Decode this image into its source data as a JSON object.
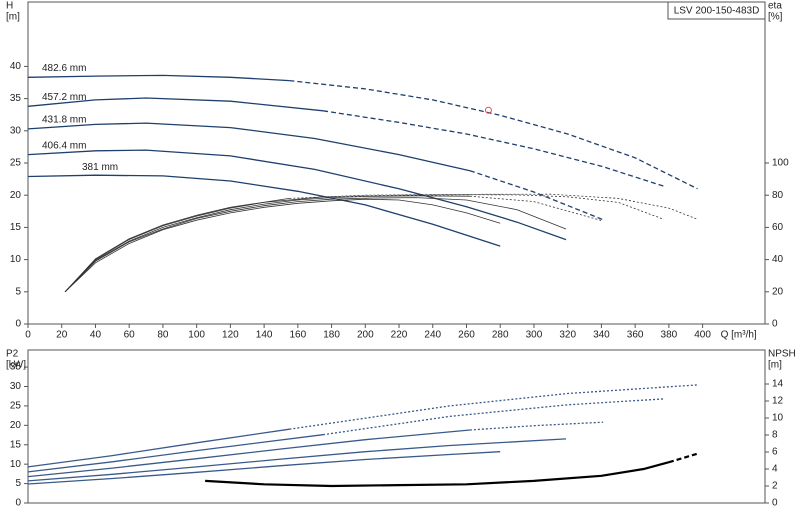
{
  "chart_data": [
    {
      "type": "line",
      "title": "LSV 200-150-483D",
      "xlabel": "Q [m³/h]",
      "ylabel": [
        "H",
        "[m]"
      ],
      "y2label": [
        "eta",
        "[%]"
      ],
      "xlim": [
        0,
        437
      ],
      "xticks": [
        0,
        20,
        40,
        60,
        80,
        100,
        120,
        140,
        160,
        180,
        200,
        220,
        240,
        260,
        280,
        300,
        320,
        340,
        360,
        380,
        400
      ],
      "ylim": [
        0,
        50
      ],
      "yticks": [
        0,
        5,
        10,
        15,
        20,
        25,
        30,
        35,
        40
      ],
      "y2lim": [
        0,
        200
      ],
      "y2ticks": [
        0,
        20,
        40,
        60,
        80,
        100
      ],
      "operating_point": {
        "x": 273,
        "y": 33.2,
        "color": "#e05050"
      },
      "series": [
        {
          "name": "482.6 mm",
          "color": "#1f3f6e",
          "style": "solid",
          "x": [
            0,
            40,
            80,
            120,
            155
          ],
          "values": [
            38.3,
            38.5,
            38.6,
            38.3,
            37.8
          ]
        },
        {
          "color": "#1f3f6e",
          "style": "dashed",
          "x": [
            155,
            200,
            240,
            280,
            320,
            360,
            397
          ],
          "values": [
            37.8,
            36.5,
            34.8,
            32.4,
            29.5,
            25.8,
            21
          ]
        },
        {
          "name": "457.2 mm",
          "color": "#1f3f6e",
          "style": "solid",
          "x": [
            0,
            40,
            70,
            120,
            175
          ],
          "values": [
            33.8,
            34.8,
            35.1,
            34.6,
            33.1
          ]
        },
        {
          "color": "#1f3f6e",
          "style": "dashed",
          "x": [
            175,
            220,
            260,
            300,
            340,
            377
          ],
          "values": [
            33.1,
            31.3,
            29.5,
            27.2,
            24.5,
            21.4
          ]
        },
        {
          "name": "431.8 mm",
          "color": "#1f3f6e",
          "style": "solid",
          "x": [
            0,
            40,
            70,
            120,
            170,
            220,
            262
          ],
          "values": [
            30.3,
            31,
            31.2,
            30.5,
            28.8,
            26.3,
            23.8
          ]
        },
        {
          "color": "#1f3f6e",
          "style": "dashed",
          "x": [
            262,
            300,
            341
          ],
          "values": [
            23.8,
            20.5,
            16.2
          ]
        },
        {
          "name": "406.4 mm",
          "color": "#1f3f6e",
          "style": "solid",
          "x": [
            0,
            40,
            70,
            120,
            170,
            220,
            260,
            290,
            319
          ],
          "values": [
            26.3,
            26.9,
            27,
            26.1,
            24,
            21,
            18.2,
            15.8,
            13.1
          ]
        },
        {
          "name": "381 mm",
          "color": "#1f3f6e",
          "style": "solid",
          "x": [
            0,
            40,
            80,
            120,
            160,
            200,
            240,
            280
          ],
          "values": [
            22.9,
            23.1,
            23,
            22.2,
            20.6,
            18.5,
            15.5,
            12.1
          ]
        },
        {
          "color": "#333333",
          "style": "solid",
          "axis": "y2",
          "x": [
            22,
            40,
            60,
            80,
            100,
            120,
            140,
            160,
            180,
            200,
            220,
            240,
            260,
            280
          ],
          "values": [
            20,
            38,
            50,
            58.5,
            64.5,
            69,
            72.5,
            75,
            76.5,
            77.5,
            77,
            74,
            69,
            62.6
          ]
        },
        {
          "color": "#333333",
          "style": "solid",
          "axis": "y2",
          "x": [
            22,
            40,
            60,
            80,
            100,
            120,
            140,
            160,
            180,
            200,
            230,
            260,
            290,
            319
          ],
          "values": [
            20,
            39,
            51,
            59,
            65.5,
            70,
            73.5,
            76,
            77.5,
            78.2,
            78.5,
            77,
            71,
            59
          ]
        },
        {
          "color": "#333333",
          "style": "solid",
          "axis": "y2",
          "x": [
            22,
            40,
            60,
            80,
            100,
            120,
            140,
            160,
            180,
            200,
            230,
            262
          ],
          "values": [
            20,
            39.5,
            51.5,
            60,
            66,
            71,
            74.5,
            77,
            78.5,
            79.2,
            79.6,
            79.4
          ]
        },
        {
          "color": "#333333",
          "style": "dotted",
          "axis": "y2",
          "x": [
            262,
            300,
            341
          ],
          "values": [
            79.4,
            76,
            64
          ]
        },
        {
          "color": "#333333",
          "style": "solid",
          "axis": "y2",
          "x": [
            22,
            40,
            60,
            80,
            100,
            120,
            140,
            175
          ],
          "values": [
            20,
            40,
            52.5,
            61,
            67,
            72,
            75.5,
            79
          ]
        },
        {
          "color": "#333333",
          "style": "dotted",
          "axis": "y2",
          "x": [
            175,
            220,
            260,
            290,
            320,
            350,
            377
          ],
          "values": [
            79,
            80,
            80.3,
            80.2,
            79,
            75.5,
            65
          ]
        },
        {
          "color": "#333333",
          "style": "solid",
          "axis": "y2",
          "x": [
            22,
            40,
            60,
            80,
            100,
            120,
            155
          ],
          "values": [
            20,
            40.5,
            53,
            61.5,
            67.5,
            72.5,
            78
          ]
        },
        {
          "color": "#333333",
          "style": "dotted",
          "axis": "y2",
          "x": [
            155,
            200,
            250,
            310,
            350,
            380,
            397
          ],
          "values": [
            78,
            80,
            80.5,
            80.6,
            78,
            72,
            65
          ]
        }
      ]
    },
    {
      "type": "line",
      "ylabel": [
        "P2",
        "[kW]"
      ],
      "y2label": [
        "NPSH",
        "[m]"
      ],
      "xlim": [
        0,
        437
      ],
      "ylim": [
        0,
        39.4
      ],
      "yticks": [
        0,
        5,
        10,
        15,
        20,
        25,
        30,
        35
      ],
      "y2lim": [
        0,
        18
      ],
      "y2ticks": [
        0,
        2,
        4,
        6,
        8,
        10,
        12,
        14
      ],
      "series": [
        {
          "color": "#3a5a8c",
          "style": "solid",
          "x": [
            0,
            50,
            100,
            150,
            200,
            250,
            280
          ],
          "values": [
            4.9,
            6.3,
            7.9,
            9.6,
            11.2,
            12.5,
            13.2
          ]
        },
        {
          "color": "#3a5a8c",
          "style": "solid",
          "x": [
            0,
            50,
            100,
            150,
            200,
            250,
            319
          ],
          "values": [
            5.7,
            7.4,
            9.3,
            11.3,
            13.2,
            14.8,
            16.5
          ]
        },
        {
          "color": "#3a5a8c",
          "style": "solid",
          "x": [
            0,
            50,
            100,
            150,
            200,
            262
          ],
          "values": [
            6.8,
            9,
            11.4,
            13.9,
            16.3,
            18.8
          ]
        },
        {
          "color": "#3a5a8c",
          "style": "dotted",
          "x": [
            262,
            300,
            341
          ],
          "values": [
            18.8,
            19.9,
            20.8
          ]
        },
        {
          "color": "#3a5a8c",
          "style": "solid",
          "x": [
            0,
            50,
            100,
            175
          ],
          "values": [
            8,
            10.6,
            13.5,
            17.6
          ]
        },
        {
          "color": "#3a5a8c",
          "style": "dotted",
          "x": [
            175,
            250,
            320,
            377
          ],
          "values": [
            17.6,
            22.3,
            25.3,
            26.8
          ]
        },
        {
          "color": "#3a5a8c",
          "style": "solid",
          "x": [
            0,
            50,
            100,
            155
          ],
          "values": [
            9.3,
            12.2,
            15.5,
            19
          ]
        },
        {
          "color": "#3a5a8c",
          "style": "dotted",
          "x": [
            155,
            250,
            320,
            397
          ],
          "values": [
            19,
            25,
            28.2,
            30.4
          ]
        },
        {
          "color": "#000000",
          "style": "solid",
          "axis": "y2",
          "width": 2.2,
          "x": [
            105,
            140,
            180,
            220,
            260,
            300,
            340,
            365,
            380
          ],
          "values": [
            2.6,
            2.2,
            2.0,
            2.1,
            2.2,
            2.6,
            3.2,
            4.0,
            4.8
          ]
        },
        {
          "color": "#000000",
          "style": "dashed",
          "axis": "y2",
          "width": 2.2,
          "x": [
            380,
            397
          ],
          "values": [
            4.8,
            5.8
          ]
        }
      ]
    }
  ]
}
